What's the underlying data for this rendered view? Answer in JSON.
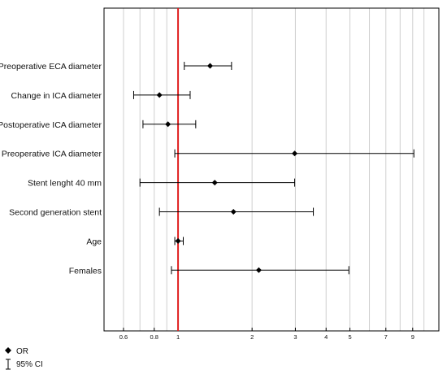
{
  "chart_data": {
    "type": "forest",
    "scale": "log",
    "xlim": [
      0.5,
      11.5
    ],
    "ticks": [
      0.6,
      0.8,
      1,
      2,
      3,
      4,
      5,
      7,
      9
    ],
    "tick_labels": [
      "0.6",
      "0.8",
      "1",
      "2",
      "3",
      "4",
      "5",
      "7",
      "9"
    ],
    "minor_gridlines": [
      0.6,
      0.7,
      0.8,
      0.9,
      1,
      2,
      3,
      4,
      5,
      6,
      7,
      8,
      9,
      10
    ],
    "reference_line": 1,
    "reference_color": "#e02020",
    "grid": true,
    "rows": [
      {
        "label": "Preoperative ECA diameter",
        "or": 1.35,
        "lower": 1.06,
        "upper": 1.65
      },
      {
        "label": "Change in ICA diameter",
        "or": 0.84,
        "lower": 0.66,
        "upper": 1.12
      },
      {
        "label": "Postoperative ICA diameter",
        "or": 0.91,
        "lower": 0.72,
        "upper": 1.18
      },
      {
        "label": "Preoperative ICA diameter",
        "or": 2.98,
        "lower": 0.97,
        "upper": 9.1
      },
      {
        "label": "Stent lenght 40 mm",
        "or": 1.41,
        "lower": 0.7,
        "upper": 2.98
      },
      {
        "label": "Second generation stent",
        "or": 1.68,
        "lower": 0.84,
        "upper": 3.55
      },
      {
        "label": "Age",
        "or": 1.0,
        "lower": 0.97,
        "upper": 1.05
      },
      {
        "label": "Females",
        "or": 2.13,
        "lower": 0.94,
        "upper": 4.95
      }
    ],
    "legend": {
      "point_label": "OR",
      "ci_label": "95% CI",
      "placement": "bottom-left"
    }
  }
}
